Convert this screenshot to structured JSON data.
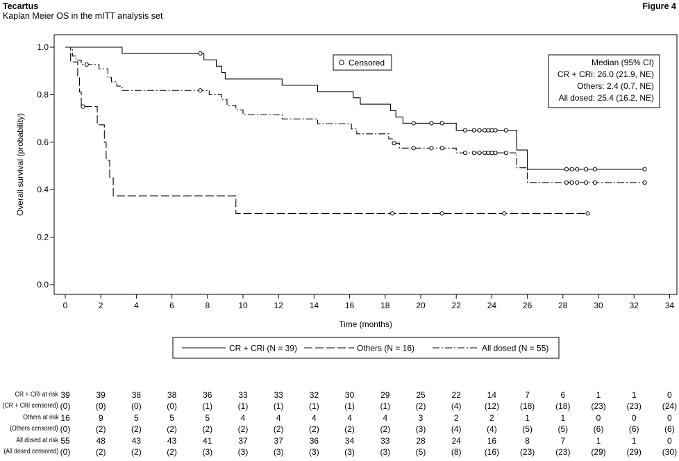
{
  "header": {
    "title": "Tecartus",
    "subtitle": "Kaplan Meier OS in the mITT analysis set",
    "figure_label": "Figure 4"
  },
  "chart_data": {
    "type": "line",
    "title": "Kaplan Meier OS in the mITT analysis set",
    "xlabel": "Time (months)",
    "ylabel": "Overall survival (probability)",
    "xlim": [
      0,
      34
    ],
    "ylim": [
      0,
      1.0
    ],
    "x_ticks": [
      0,
      2,
      4,
      6,
      8,
      10,
      12,
      14,
      16,
      18,
      20,
      22,
      24,
      26,
      28,
      30,
      32,
      34
    ],
    "y_ticks": [
      "0.0",
      "0.2",
      "0.4",
      "0.6",
      "0.8",
      "1.0"
    ],
    "grid": false,
    "legend_placement": "bottom",
    "censored_legend": "Censored",
    "stats_box": {
      "title": "Median (95% CI)",
      "lines": [
        "CR + CRi: 26.0 (21.9, NE)",
        "Others: 2.4 (0.7, NE)",
        "All dosed: 25.4 (16.2, NE)"
      ]
    },
    "series": [
      {
        "name": "CR + CRi (N = 39)",
        "style": "solid",
        "steps": [
          [
            0,
            1.0
          ],
          [
            3.2,
            0.974
          ],
          [
            7.8,
            0.947
          ],
          [
            8.5,
            0.92
          ],
          [
            8.8,
            0.893
          ],
          [
            9.0,
            0.866
          ],
          [
            12.2,
            0.84
          ],
          [
            14.2,
            0.813
          ],
          [
            16.2,
            0.787
          ],
          [
            16.6,
            0.76
          ],
          [
            18.3,
            0.733
          ],
          [
            18.6,
            0.706
          ],
          [
            19.0,
            0.68
          ],
          [
            22.0,
            0.65
          ],
          [
            25.4,
            0.567
          ],
          [
            26.0,
            0.486
          ]
        ],
        "censored": [
          [
            7.6,
            0.974
          ],
          [
            19.6,
            0.68
          ],
          [
            20.6,
            0.68
          ],
          [
            21.2,
            0.68
          ],
          [
            22.5,
            0.65
          ],
          [
            23.0,
            0.65
          ],
          [
            23.3,
            0.65
          ],
          [
            23.6,
            0.65
          ],
          [
            23.8,
            0.65
          ],
          [
            24.0,
            0.65
          ],
          [
            24.2,
            0.65
          ],
          [
            24.8,
            0.65
          ],
          [
            28.2,
            0.486
          ],
          [
            28.5,
            0.486
          ],
          [
            28.8,
            0.486
          ],
          [
            29.3,
            0.486
          ],
          [
            29.8,
            0.486
          ],
          [
            32.6,
            0.486
          ]
        ],
        "end_x": 32.6
      },
      {
        "name": "Others (N = 16)",
        "style": "dashed",
        "steps": [
          [
            0,
            1.0
          ],
          [
            0.3,
            0.938
          ],
          [
            0.7,
            0.875
          ],
          [
            0.8,
            0.812
          ],
          [
            0.9,
            0.75
          ],
          [
            1.8,
            0.673
          ],
          [
            2.2,
            0.6
          ],
          [
            2.3,
            0.524
          ],
          [
            2.5,
            0.449
          ],
          [
            2.7,
            0.374
          ],
          [
            9.6,
            0.3
          ]
        ],
        "censored": [
          [
            1.0,
            0.75
          ],
          [
            18.4,
            0.3
          ],
          [
            21.2,
            0.3
          ],
          [
            24.7,
            0.3
          ],
          [
            29.4,
            0.3
          ]
        ],
        "end_x": 29.4
      },
      {
        "name": "All dosed (N = 55)",
        "style": "dashdot",
        "steps": [
          [
            0,
            1.0
          ],
          [
            0.4,
            0.963
          ],
          [
            0.6,
            0.945
          ],
          [
            0.9,
            0.927
          ],
          [
            1.9,
            0.909
          ],
          [
            2.4,
            0.872
          ],
          [
            2.6,
            0.854
          ],
          [
            2.9,
            0.836
          ],
          [
            3.2,
            0.818
          ],
          [
            8.1,
            0.8
          ],
          [
            8.8,
            0.78
          ],
          [
            9.1,
            0.755
          ],
          [
            9.6,
            0.736
          ],
          [
            10.0,
            0.716
          ],
          [
            12.2,
            0.698
          ],
          [
            14.2,
            0.677
          ],
          [
            16.1,
            0.656
          ],
          [
            16.4,
            0.635
          ],
          [
            18.2,
            0.614
          ],
          [
            18.4,
            0.596
          ],
          [
            18.8,
            0.575
          ],
          [
            22.0,
            0.555
          ],
          [
            25.4,
            0.492
          ],
          [
            26.0,
            0.43
          ]
        ],
        "censored": [
          [
            1.2,
            0.927
          ],
          [
            7.6,
            0.818
          ],
          [
            18.5,
            0.596
          ],
          [
            19.6,
            0.575
          ],
          [
            20.6,
            0.575
          ],
          [
            21.2,
            0.575
          ],
          [
            22.5,
            0.555
          ],
          [
            23.0,
            0.555
          ],
          [
            23.3,
            0.555
          ],
          [
            23.6,
            0.555
          ],
          [
            23.8,
            0.555
          ],
          [
            24.0,
            0.555
          ],
          [
            24.2,
            0.555
          ],
          [
            24.8,
            0.555
          ],
          [
            28.2,
            0.43
          ],
          [
            28.5,
            0.43
          ],
          [
            28.8,
            0.43
          ],
          [
            29.3,
            0.43
          ],
          [
            29.8,
            0.43
          ],
          [
            32.6,
            0.43
          ]
        ],
        "end_x": 32.6
      }
    ]
  },
  "risk_table": {
    "times": [
      0,
      2,
      4,
      6,
      8,
      10,
      12,
      14,
      16,
      18,
      20,
      22,
      24,
      26,
      28,
      30,
      32,
      34
    ],
    "rows": [
      {
        "label": "CR + CRi at risk",
        "values": [
          "39",
          "39",
          "38",
          "38",
          "36",
          "33",
          "33",
          "32",
          "30",
          "29",
          "25",
          "22",
          "14",
          "7",
          "6",
          "1",
          "1",
          "0"
        ]
      },
      {
        "label": "(CR + CRi censored)",
        "values": [
          "(0)",
          "(0)",
          "(0)",
          "(0)",
          "(1)",
          "(1)",
          "(1)",
          "(1)",
          "(1)",
          "(1)",
          "(2)",
          "(4)",
          "(12)",
          "(18)",
          "(18)",
          "(23)",
          "(23)",
          "(24)"
        ]
      },
      {
        "label": "Others at risk",
        "values": [
          "16",
          "9",
          "5",
          "5",
          "5",
          "4",
          "4",
          "4",
          "4",
          "4",
          "3",
          "2",
          "2",
          "1",
          "1",
          "0",
          "0",
          "0"
        ]
      },
      {
        "label": "(Others censored)",
        "values": [
          "(0)",
          "(2)",
          "(2)",
          "(2)",
          "(2)",
          "(2)",
          "(2)",
          "(2)",
          "(2)",
          "(2)",
          "(3)",
          "(4)",
          "(4)",
          "(5)",
          "(5)",
          "(6)",
          "(6)",
          "(6)"
        ]
      },
      {
        "label": "All dosed at risk",
        "values": [
          "55",
          "48",
          "43",
          "43",
          "41",
          "37",
          "37",
          "36",
          "34",
          "33",
          "28",
          "24",
          "16",
          "8",
          "7",
          "1",
          "1",
          "0"
        ]
      },
      {
        "label": "(All dosed censored)",
        "values": [
          "(0)",
          "(2)",
          "(2)",
          "(2)",
          "(3)",
          "(3)",
          "(3)",
          "(3)",
          "(3)",
          "(3)",
          "(5)",
          "(8)",
          "(16)",
          "(23)",
          "(23)",
          "(29)",
          "(29)",
          "(30)"
        ]
      }
    ]
  }
}
